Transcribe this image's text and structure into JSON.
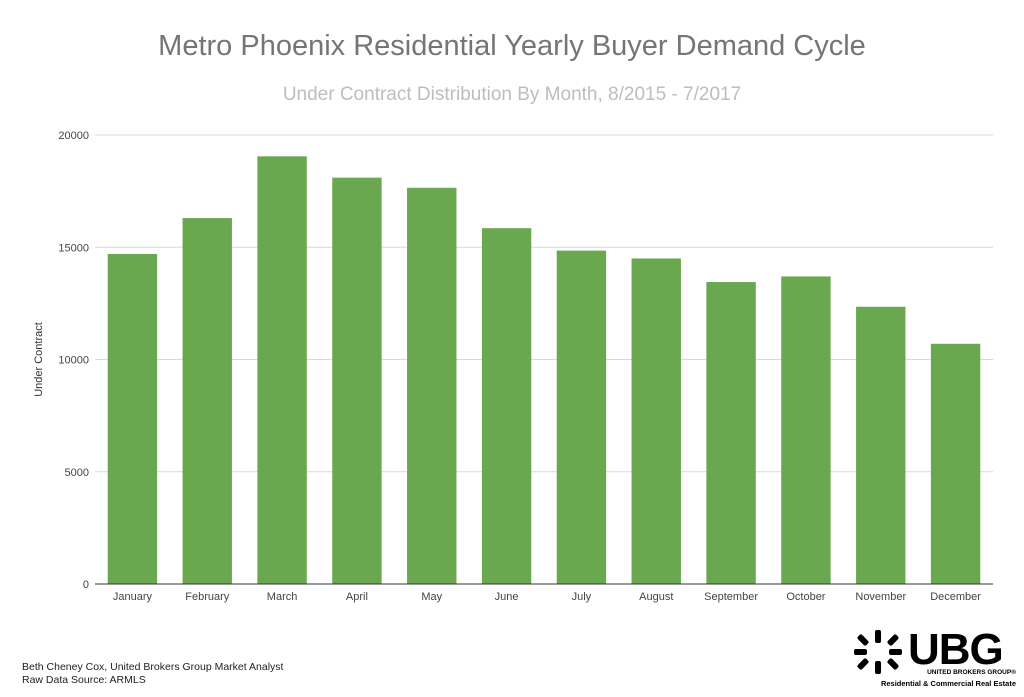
{
  "chart_data": {
    "type": "bar",
    "title": "Metro Phoenix Residential Yearly Buyer Demand Cycle",
    "subtitle": "Under Contract Distribution By Month, 8/2015 - 7/2017",
    "ylabel": "Under Contract",
    "xlabel": "",
    "categories": [
      "January",
      "February",
      "March",
      "April",
      "May",
      "June",
      "July",
      "August",
      "September",
      "October",
      "November",
      "December"
    ],
    "values": [
      14700,
      16300,
      19050,
      18100,
      17650,
      15850,
      14850,
      14500,
      13450,
      13700,
      12350,
      10700
    ],
    "ylim": [
      0,
      20000
    ],
    "yticks": [
      "0",
      "5000",
      "10000",
      "15000",
      "20000"
    ],
    "grid": true,
    "legend": "none",
    "colors": {
      "bar": "#6aa84f",
      "grid": "#d9d9d9",
      "axis": "#333333"
    }
  },
  "footer": {
    "credit_line1": "Beth Cheney Cox, United Brokers Group Market Analyst",
    "credit_line2": "Raw Data Source:  ARMLS"
  },
  "logo": {
    "main": "UBG",
    "line1": "UNITED BROKERS GROUP®",
    "line2": "Residential & Commercial Real Estate"
  }
}
